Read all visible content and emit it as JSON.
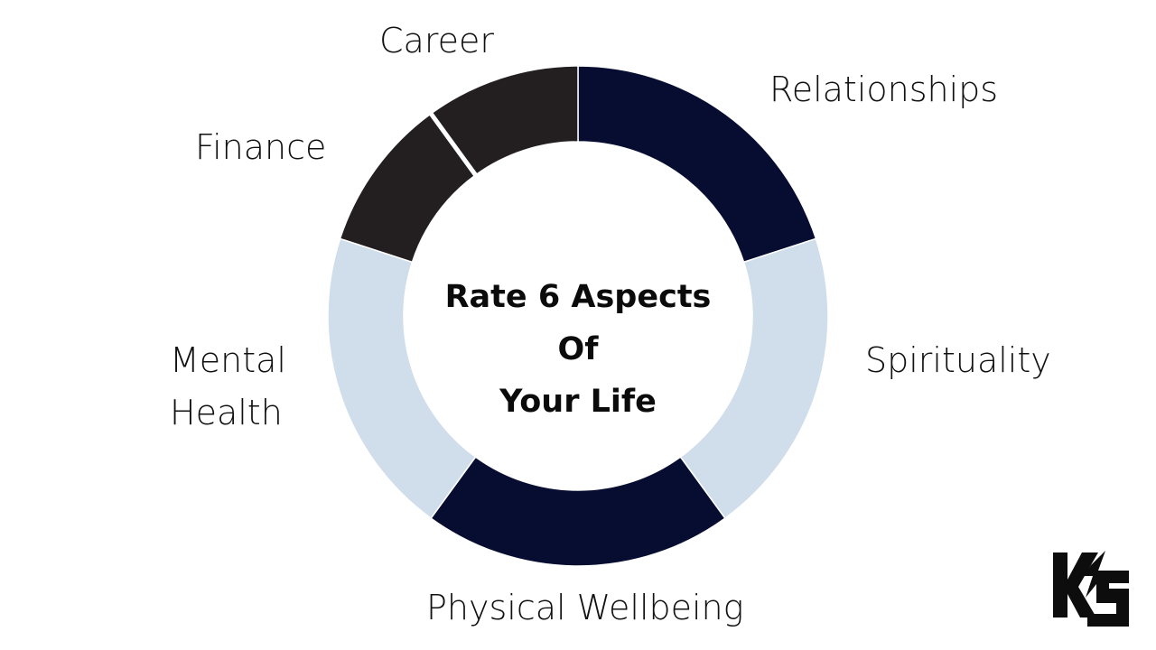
{
  "title_lines": [
    "Rate 6 Aspects Of",
    "Your Life"
  ],
  "segments": [
    {
      "label_lines": [
        "Relationships"
      ],
      "color": "#060d31"
    },
    {
      "label_lines": [
        "Spirituality"
      ],
      "color": "#cfdeea"
    },
    {
      "label_lines": [
        "Physical Wellbeing"
      ],
      "color": "#060d31"
    },
    {
      "label_lines": [
        "Mental",
        "Health"
      ],
      "color": "#cfdeea"
    },
    {
      "label_lines": [
        "Finance"
      ],
      "color": "#231f20"
    },
    {
      "label_lines": [
        "Career"
      ],
      "color": "#231f20"
    }
  ],
  "logo": {
    "text": "KS",
    "color": "#0d0d0d"
  },
  "background": "#ffffff"
}
